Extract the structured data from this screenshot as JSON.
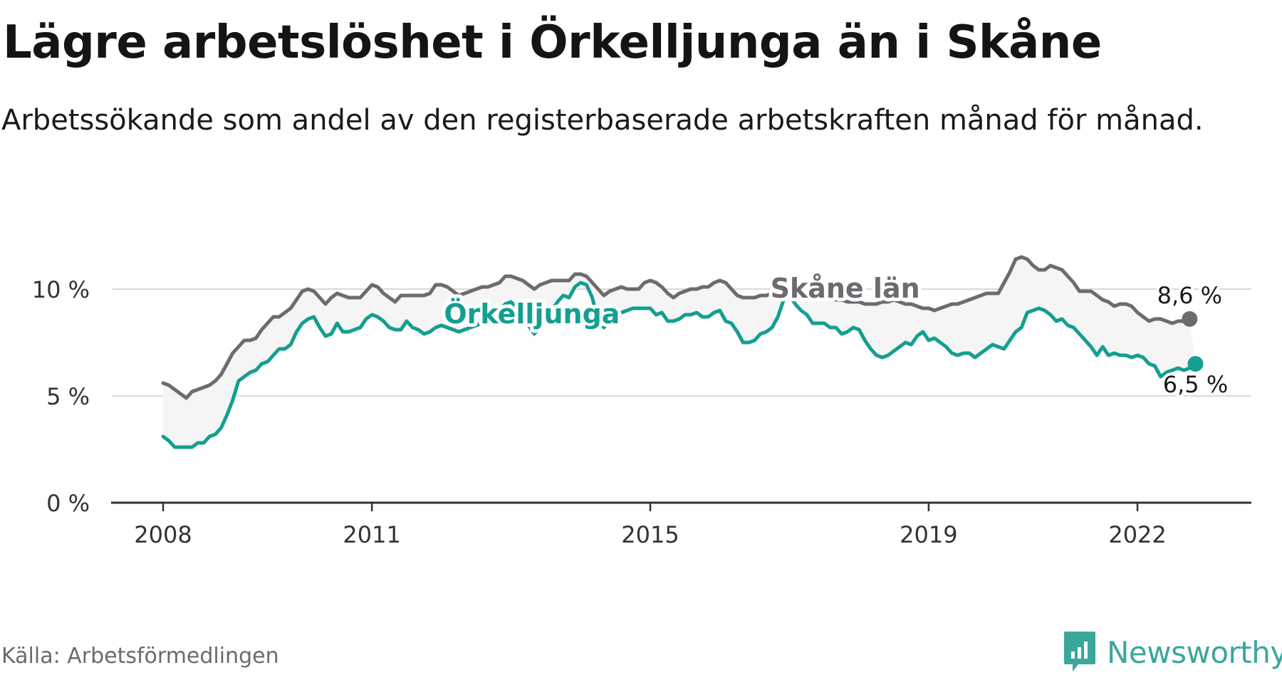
{
  "title": "Lägre arbetslöshet i Örkelljunga än i Skåne",
  "subtitle": "Arbetssökande som andel av den registerbaserade arbetskraften månad för månad.",
  "source": "Källa: Arbetsförmedlingen",
  "brand": {
    "name": "Newsworthy",
    "icon": "newsworthy-logo-icon",
    "color": "#3aa79b"
  },
  "chart_data": {
    "type": "line",
    "title": "Lägre arbetslöshet i Örkelljunga än i Skåne",
    "xlabel": "",
    "ylabel": "",
    "y_ticks": [
      {
        "value": 0,
        "label": "0 %"
      },
      {
        "value": 5,
        "label": "5 %"
      },
      {
        "value": 10,
        "label": "10 %"
      }
    ],
    "x_ticks": [
      {
        "value": 2008,
        "label": "2008"
      },
      {
        "value": 2011,
        "label": "2011"
      },
      {
        "value": 2015,
        "label": "2015"
      },
      {
        "value": 2019,
        "label": "2019"
      },
      {
        "value": 2022,
        "label": "2022"
      }
    ],
    "xlim": [
      2008,
      2022.9
    ],
    "ylim": [
      0,
      10
    ],
    "grid": true,
    "series": [
      {
        "name": "Skåne län",
        "color": "#6e6b70",
        "end_label": "8,6 %",
        "x_start": 2008.0,
        "step": 0.08333333,
        "values": [
          5.6,
          5.5,
          5.3,
          5.1,
          4.9,
          5.2,
          5.3,
          5.4,
          5.5,
          5.7,
          6.0,
          6.5,
          7.0,
          7.3,
          7.6,
          7.6,
          7.7,
          8.1,
          8.4,
          8.7,
          8.7,
          8.9,
          9.1,
          9.5,
          9.9,
          10.0,
          9.9,
          9.6,
          9.3,
          9.6,
          9.8,
          9.7,
          9.6,
          9.6,
          9.6,
          9.9,
          10.2,
          10.1,
          9.8,
          9.6,
          9.4,
          9.7,
          9.7,
          9.7,
          9.7,
          9.7,
          9.8,
          10.2,
          10.2,
          10.1,
          9.9,
          9.7,
          9.8,
          9.9,
          10.0,
          10.1,
          10.1,
          10.2,
          10.3,
          10.6,
          10.6,
          10.5,
          10.4,
          10.2,
          10.0,
          10.2,
          10.3,
          10.4,
          10.4,
          10.4,
          10.4,
          10.7,
          10.7,
          10.6,
          10.3,
          10.0,
          9.7,
          9.9,
          10.0,
          10.1,
          10.0,
          10.0,
          10.0,
          10.3,
          10.4,
          10.3,
          10.1,
          9.8,
          9.6,
          9.8,
          9.9,
          10.0,
          10.0,
          10.1,
          10.1,
          10.3,
          10.4,
          10.3,
          10.0,
          9.7,
          9.6,
          9.6,
          9.6,
          9.7,
          9.7,
          9.8,
          9.8,
          9.9,
          10.0,
          10.0,
          9.9,
          9.8,
          9.7,
          9.6,
          9.6,
          9.6,
          9.5,
          9.5,
          9.4,
          9.4,
          9.4,
          9.3,
          9.3,
          9.3,
          9.4,
          9.4,
          9.5,
          9.4,
          9.3,
          9.3,
          9.2,
          9.1,
          9.1,
          9.0,
          9.1,
          9.2,
          9.3,
          9.3,
          9.4,
          9.5,
          9.6,
          9.7,
          9.8,
          9.8,
          9.8,
          10.3,
          10.8,
          11.4,
          11.5,
          11.4,
          11.1,
          10.9,
          10.9,
          11.1,
          11.0,
          10.9,
          10.6,
          10.3,
          9.9,
          9.9,
          9.9,
          9.7,
          9.5,
          9.4,
          9.2,
          9.3,
          9.3,
          9.2,
          8.9,
          8.7,
          8.5,
          8.6,
          8.6,
          8.5,
          8.4,
          8.5,
          8.5,
          8.6
        ]
      },
      {
        "name": "Örkelljunga",
        "color": "#149f90",
        "end_label": "6,5 %",
        "x_start": 2008.0,
        "step": 0.08333333,
        "values": [
          3.1,
          2.9,
          2.6,
          2.6,
          2.6,
          2.6,
          2.8,
          2.8,
          3.1,
          3.2,
          3.5,
          4.1,
          4.8,
          5.7,
          5.9,
          6.1,
          6.2,
          6.5,
          6.6,
          6.9,
          7.2,
          7.2,
          7.4,
          8.0,
          8.4,
          8.6,
          8.7,
          8.2,
          7.8,
          7.9,
          8.4,
          8.0,
          8.0,
          8.1,
          8.2,
          8.6,
          8.8,
          8.7,
          8.5,
          8.2,
          8.1,
          8.1,
          8.5,
          8.2,
          8.1,
          7.9,
          8.0,
          8.2,
          8.3,
          8.2,
          8.1,
          8.0,
          8.1,
          8.2,
          8.3,
          8.4,
          8.6,
          8.8,
          9.0,
          9.3,
          9.4,
          9.1,
          8.7,
          8.3,
          7.9,
          8.2,
          8.6,
          9.0,
          9.4,
          9.7,
          9.6,
          10.1,
          10.3,
          10.2,
          9.6,
          8.5,
          8.2,
          8.5,
          8.8,
          8.9,
          9.0,
          9.1,
          9.1,
          9.1,
          9.1,
          8.8,
          8.9,
          8.5,
          8.5,
          8.6,
          8.8,
          8.8,
          8.9,
          8.7,
          8.7,
          8.9,
          9.0,
          8.5,
          8.4,
          8.0,
          7.5,
          7.5,
          7.6,
          7.9,
          8.0,
          8.2,
          8.7,
          9.5,
          9.7,
          9.3,
          9.0,
          8.8,
          8.4,
          8.4,
          8.4,
          8.2,
          8.2,
          7.9,
          8.0,
          8.2,
          8.1,
          7.6,
          7.2,
          6.9,
          6.8,
          6.9,
          7.1,
          7.3,
          7.5,
          7.4,
          7.8,
          8.0,
          7.6,
          7.7,
          7.5,
          7.3,
          7.0,
          6.9,
          7.0,
          7.0,
          6.8,
          7.0,
          7.2,
          7.4,
          7.3,
          7.2,
          7.6,
          8.0,
          8.2,
          8.9,
          9.0,
          9.1,
          9.0,
          8.8,
          8.5,
          8.6,
          8.3,
          8.2,
          7.9,
          7.6,
          7.3,
          6.9,
          7.3,
          6.9,
          7.0,
          6.9,
          6.9,
          6.8,
          6.9,
          6.8,
          6.5,
          6.4,
          5.9,
          6.1,
          6.2,
          6.3,
          6.2,
          6.3,
          6.5
        ]
      }
    ],
    "annotations": [
      {
        "text": "Skåne län",
        "series": "Skåne län",
        "x": 2017.8,
        "y": 10.0
      },
      {
        "text": "Örkelljunga",
        "series": "Örkelljunga",
        "x": 2013.3,
        "y": 8.8
      }
    ]
  }
}
